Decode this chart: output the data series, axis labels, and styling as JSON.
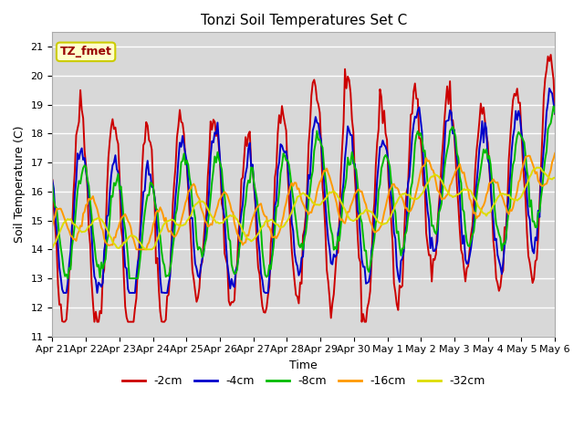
{
  "title": "Tonzi Soil Temperatures Set C",
  "xlabel": "Time",
  "ylabel": "Soil Temperature (C)",
  "ylim": [
    11.0,
    21.5
  ],
  "yticks": [
    11.0,
    12.0,
    13.0,
    14.0,
    15.0,
    16.0,
    17.0,
    18.0,
    19.0,
    20.0,
    21.0
  ],
  "bg_color": "#d8d8d8",
  "fig_color": "#ffffff",
  "legend_label": "TZ_fmet",
  "legend_text_color": "#990000",
  "legend_bg": "#ffffcc",
  "legend_border": "#cccc00",
  "xtick_labels": [
    "Apr 21",
    "Apr 22",
    "Apr 23",
    "Apr 24",
    "Apr 25",
    "Apr 26",
    "Apr 27",
    "Apr 28",
    "Apr 29",
    "Apr 30",
    "May 1",
    "May 2",
    "May 3",
    "May 4",
    "May 5",
    "May 6"
  ],
  "series_colors": [
    "#cc0000",
    "#0000cc",
    "#00bb00",
    "#ff9900",
    "#dddd00"
  ],
  "series_labels": [
    "-2cm",
    "-4cm",
    "-8cm",
    "-16cm",
    "-32cm"
  ],
  "series_lw": [
    1.4,
    1.4,
    1.4,
    1.4,
    1.4
  ]
}
